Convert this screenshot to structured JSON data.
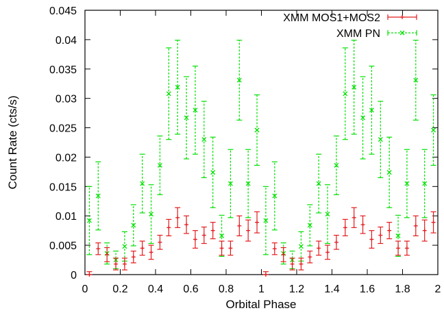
{
  "chart_data": {
    "type": "scatter",
    "xlabel": "Orbital Phase",
    "ylabel": "Count Rate (cts/s)",
    "xlim": [
      0,
      2
    ],
    "ylim": [
      0,
      0.045
    ],
    "x_ticks": [
      0,
      0.2,
      0.4,
      0.6,
      0.8,
      1,
      1.2,
      1.4,
      1.6,
      1.8,
      2
    ],
    "x_tick_labels": [
      "0",
      "0.2",
      "0.4",
      "0.6",
      "0.8",
      "1",
      "1.2",
      "1.4",
      "1.6",
      "1.8",
      "2"
    ],
    "y_ticks": [
      0,
      0.005,
      0.01,
      0.015,
      0.02,
      0.025,
      0.03,
      0.035,
      0.04,
      0.045
    ],
    "y_tick_labels": [
      "0",
      "0.005",
      "0.01",
      "0.015",
      "0.02",
      "0.025",
      "0.03",
      "0.035",
      "0.04",
      "0.045"
    ],
    "grid": false,
    "legend_position": "top-right",
    "series": [
      {
        "name": "XMM MOS1+MOS2",
        "color": "#e41a1c",
        "marker": "plus",
        "x": [
          0.025,
          0.075,
          0.125,
          0.175,
          0.225,
          0.275,
          0.325,
          0.375,
          0.425,
          0.475,
          0.525,
          0.575,
          0.625,
          0.675,
          0.725,
          0.775,
          0.825,
          0.875,
          0.925,
          0.975,
          1.025,
          1.075,
          1.125,
          1.175,
          1.225,
          1.275,
          1.325,
          1.375,
          1.425,
          1.475,
          1.525,
          1.575,
          1.625,
          1.675,
          1.725,
          1.775,
          1.825,
          1.875,
          1.925,
          1.975
        ],
        "y": [
          0.0,
          0.0044,
          0.0034,
          0.0018,
          0.0018,
          0.003,
          0.0045,
          0.0038,
          0.0055,
          0.008,
          0.0097,
          0.0085,
          0.006,
          0.0067,
          0.0075,
          0.0045,
          0.0045,
          0.0083,
          0.0075,
          0.0089,
          0.0,
          0.0044,
          0.0034,
          0.0018,
          0.0018,
          0.003,
          0.0045,
          0.0038,
          0.0055,
          0.008,
          0.0097,
          0.0085,
          0.006,
          0.0067,
          0.0075,
          0.0045,
          0.0045,
          0.0083,
          0.0075,
          0.0089
        ],
        "err": [
          0.0005,
          0.001,
          0.0012,
          0.001,
          0.001,
          0.001,
          0.0012,
          0.0012,
          0.0012,
          0.0014,
          0.0017,
          0.0015,
          0.0015,
          0.0014,
          0.0014,
          0.0012,
          0.0012,
          0.0017,
          0.0018,
          0.0018,
          0.0005,
          0.001,
          0.0012,
          0.001,
          0.001,
          0.001,
          0.0012,
          0.0012,
          0.0012,
          0.0014,
          0.0017,
          0.0015,
          0.0015,
          0.0014,
          0.0014,
          0.0012,
          0.0012,
          0.0017,
          0.0018,
          0.0018
        ]
      },
      {
        "name": "XMM PN",
        "color": "#00e000",
        "marker": "cross",
        "x": [
          0.025,
          0.075,
          0.125,
          0.175,
          0.225,
          0.275,
          0.325,
          0.375,
          0.425,
          0.475,
          0.525,
          0.575,
          0.625,
          0.675,
          0.725,
          0.775,
          0.825,
          0.875,
          0.925,
          0.975,
          1.025,
          1.075,
          1.125,
          1.175,
          1.225,
          1.275,
          1.325,
          1.375,
          1.425,
          1.475,
          1.525,
          1.575,
          1.625,
          1.675,
          1.725,
          1.775,
          1.825,
          1.875,
          1.925,
          1.975
        ],
        "y": [
          0.0092,
          0.0134,
          0.0036,
          0.0025,
          0.0048,
          0.0084,
          0.0155,
          0.0103,
          0.0186,
          0.0308,
          0.0319,
          0.0267,
          0.028,
          0.023,
          0.0174,
          0.0066,
          0.0155,
          0.0331,
          0.0155,
          0.0246,
          0.0092,
          0.0134,
          0.0036,
          0.0025,
          0.0048,
          0.0084,
          0.0155,
          0.0103,
          0.0186,
          0.0308,
          0.0319,
          0.0267,
          0.028,
          0.023,
          0.0174,
          0.0066,
          0.0155,
          0.0331,
          0.0155,
          0.0246
        ],
        "err": [
          0.0058,
          0.0058,
          0.0018,
          0.0015,
          0.0025,
          0.0035,
          0.005,
          0.005,
          0.005,
          0.0078,
          0.008,
          0.007,
          0.0075,
          0.0065,
          0.006,
          0.0035,
          0.0058,
          0.0068,
          0.0058,
          0.006,
          0.0058,
          0.0058,
          0.0018,
          0.0015,
          0.0025,
          0.0035,
          0.005,
          0.005,
          0.005,
          0.0078,
          0.008,
          0.007,
          0.0075,
          0.0065,
          0.006,
          0.0035,
          0.0058,
          0.0068,
          0.0058,
          0.006
        ]
      }
    ]
  }
}
